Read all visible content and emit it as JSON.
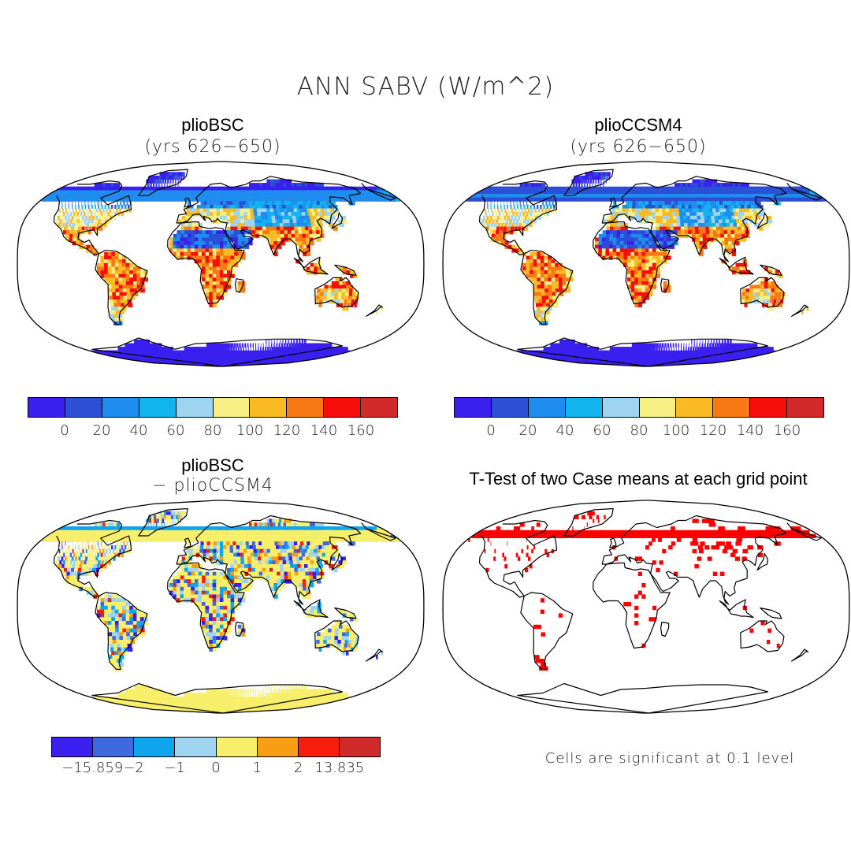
{
  "main_title": "ANN SABV (W/m^2)",
  "panels": [
    {
      "title": "plioBSC",
      "subtitle": "(yrs 626−650)"
    },
    {
      "title": "plioCCSM4",
      "subtitle": "(yrs 626−650)"
    },
    {
      "title": "plioBSC",
      "subtitle": "− plioCCSM4"
    },
    {
      "title": "T-Test of two Case means at each grid point",
      "subtitle": ""
    }
  ],
  "colorbar_abs": {
    "colors": [
      "#3b1fef",
      "#2c4fd6",
      "#1f8cf0",
      "#12b4f0",
      "#9ed4ef",
      "#f7ee84",
      "#f9bb24",
      "#f87814",
      "#f80d0d",
      "#d22a2a"
    ],
    "labels": [
      "0",
      "20",
      "40",
      "60",
      "80",
      "100",
      "120",
      "140",
      "160"
    ]
  },
  "colorbar_diff": {
    "colors": [
      "#3b1fef",
      "#3f69df",
      "#0fa5ee",
      "#9ed4ef",
      "#f7ee6a",
      "#f99d12",
      "#f81e0d",
      "#d02a2a"
    ],
    "labels": [
      "−15.859",
      "−2",
      "−1",
      "0",
      "1",
      "2",
      "13.835"
    ]
  },
  "significance_color": "#ff0000",
  "footnote": "Cells are significant at 0.1 level"
}
